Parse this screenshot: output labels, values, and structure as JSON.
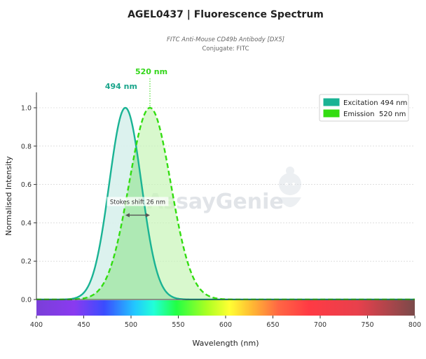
{
  "title": "AGEL0437  |  Fluorescence Spectrum",
  "subtitle": "FITC Anti-Mouse CD49b Antibody [DX5]",
  "conjugate_label": "Conjugate: FITC",
  "watermark": "AssayGenie",
  "colors": {
    "excitation": "#1ab394",
    "excitation_fill": "#d8f1ec",
    "emission": "#33dd11",
    "emission_fill": "#c8f5b8",
    "overlap_fill": "#a8e6b0",
    "stokes_arrow": "#555555"
  },
  "chart_data": {
    "type": "area",
    "xlabel": "Wavelength (nm)",
    "ylabel": "Normalised Intensity",
    "xlim": [
      400,
      800
    ],
    "ylim": [
      0,
      1.0
    ],
    "x_ticks": [
      400,
      450,
      500,
      550,
      600,
      650,
      700,
      750,
      800
    ],
    "y_ticks": [
      0.0,
      0.2,
      0.4,
      0.6,
      0.8,
      1.0
    ],
    "y_tick_labels": [
      "0.0",
      "0.2",
      "0.4",
      "0.6",
      "0.8",
      "1.0"
    ],
    "grid": "horizontal dotted",
    "legend_position": "top-right",
    "spectrum_bar": true,
    "series": [
      {
        "name": "Excitation",
        "peak_label": "494 nm",
        "peak": 494,
        "sigma": 17,
        "style": "solid"
      },
      {
        "name": "Emission",
        "peak_label": "520 nm",
        "peak": 520,
        "sigma": 22,
        "style": "dashed"
      }
    ],
    "legend": [
      {
        "label": "Excitation",
        "value": "494 nm"
      },
      {
        "label": "Emission",
        "value": "520 nm"
      }
    ],
    "annotations": {
      "excitation_peak": "494 nm",
      "emission_peak": "520 nm",
      "stokes_shift": "Stokes shift  26 nm",
      "stokes_from": 494,
      "stokes_to": 520,
      "stokes_y": 0.44
    }
  }
}
